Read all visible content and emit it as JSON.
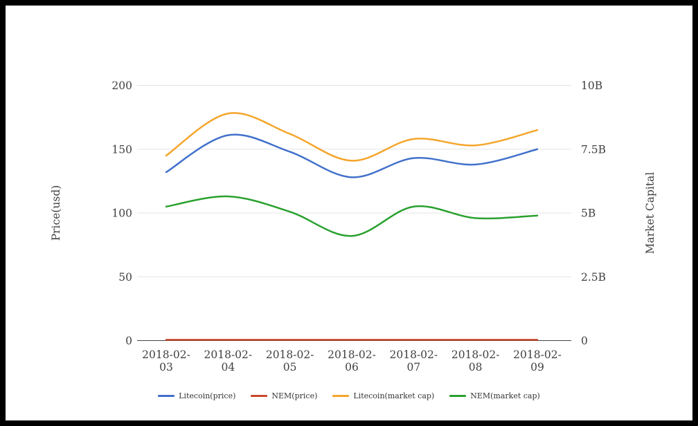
{
  "chart_data": {
    "type": "line",
    "title": "",
    "curve": "smooth",
    "grid": true,
    "legend_position": "bottom",
    "background_color": "#ffffff",
    "gridline_color": "#e3e3e3",
    "baseline_color": "#424242",
    "text_color": "#414141",
    "categories": [
      "2018-02-03",
      "2018-02-04",
      "2018-02-05",
      "2018-02-06",
      "2018-02-07",
      "2018-02-08",
      "2018-02-09"
    ],
    "left_axis": {
      "title": "Price(usd)",
      "max": 200,
      "ticks": [
        0,
        50,
        100,
        150,
        200
      ],
      "tick_labels": [
        "0",
        "50",
        "100",
        "150",
        "200"
      ]
    },
    "right_axis": {
      "title": "Market Capital",
      "max": 10,
      "unit": "B",
      "ticks": [
        0,
        2.5,
        5,
        7.5,
        10
      ],
      "tick_labels": [
        "0",
        "2.5B",
        "5B",
        "7.5B",
        "10B"
      ]
    },
    "series": [
      {
        "name": "Litecoin(price)",
        "color": "#4170cb",
        "axis": "left",
        "values": [
          132,
          161,
          148,
          128,
          143,
          138,
          150
        ]
      },
      {
        "name": "NEM(price)",
        "color": "#c9472b",
        "axis": "left",
        "values": [
          0.6,
          0.6,
          0.6,
          0.6,
          0.6,
          0.6,
          0.6
        ]
      },
      {
        "name": "Litecoin(market cap)",
        "color": "#f5a52b",
        "axis": "right",
        "values": [
          7.25,
          8.9,
          8.1,
          7.05,
          7.9,
          7.65,
          8.25
        ]
      },
      {
        "name": "NEM(market cap)",
        "color": "#28a12e",
        "axis": "right",
        "values": [
          5.25,
          5.65,
          5.05,
          4.1,
          5.25,
          4.8,
          4.9
        ]
      }
    ]
  }
}
